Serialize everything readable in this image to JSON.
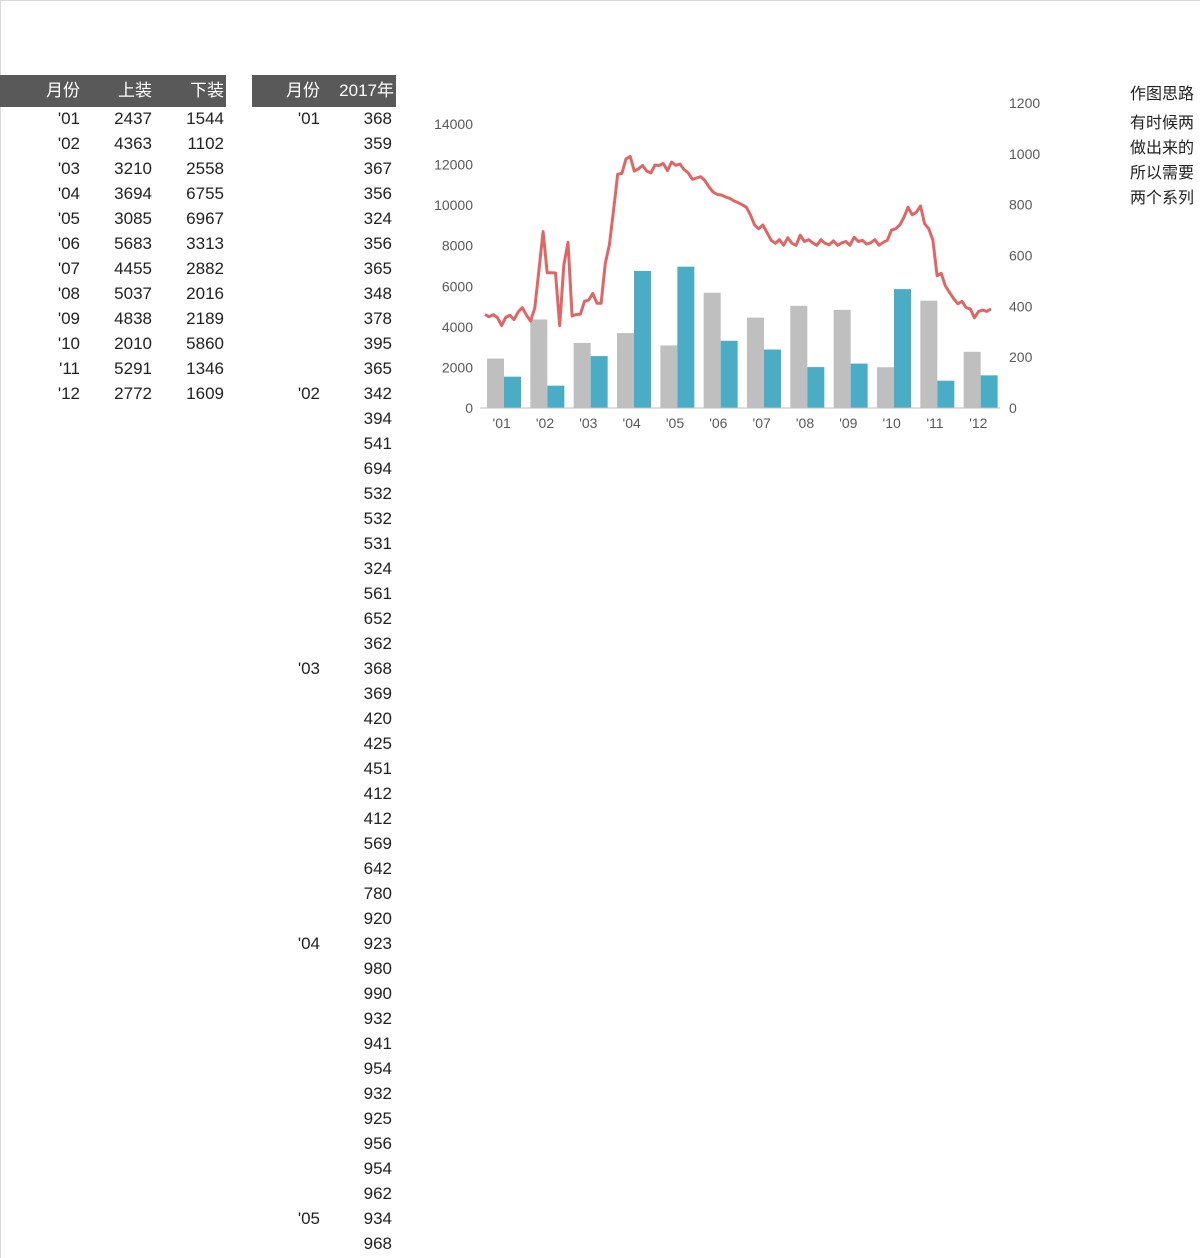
{
  "table1": {
    "headers": [
      "月份",
      "上装",
      "下装"
    ],
    "rows": [
      [
        "'01",
        "2437",
        "1544"
      ],
      [
        "'02",
        "4363",
        "1102"
      ],
      [
        "'03",
        "3210",
        "2558"
      ],
      [
        "'04",
        "3694",
        "6755"
      ],
      [
        "'05",
        "3085",
        "6967"
      ],
      [
        "'06",
        "5683",
        "3313"
      ],
      [
        "'07",
        "4455",
        "2882"
      ],
      [
        "'08",
        "5037",
        "2016"
      ],
      [
        "'09",
        "4838",
        "2189"
      ],
      [
        "'10",
        "2010",
        "5860"
      ],
      [
        "'11",
        "5291",
        "1346"
      ],
      [
        "'12",
        "2772",
        "1609"
      ]
    ]
  },
  "table2": {
    "headers": [
      "月份",
      "2017年"
    ],
    "rows": [
      [
        "'01",
        "368"
      ],
      [
        "",
        "359"
      ],
      [
        "",
        "367"
      ],
      [
        "",
        "356"
      ],
      [
        "",
        "324"
      ],
      [
        "",
        "356"
      ],
      [
        "",
        "365"
      ],
      [
        "",
        "348"
      ],
      [
        "",
        "378"
      ],
      [
        "",
        "395"
      ],
      [
        "",
        "365"
      ],
      [
        "'02",
        "342"
      ],
      [
        "",
        "394"
      ],
      [
        "",
        "541"
      ],
      [
        "",
        "694"
      ],
      [
        "",
        "532"
      ],
      [
        "",
        "532"
      ],
      [
        "",
        "531"
      ],
      [
        "",
        "324"
      ],
      [
        "",
        "561"
      ],
      [
        "",
        "652"
      ],
      [
        "",
        "362"
      ],
      [
        "'03",
        "368"
      ],
      [
        "",
        "369"
      ],
      [
        "",
        "420"
      ],
      [
        "",
        "425"
      ],
      [
        "",
        "451"
      ],
      [
        "",
        "412"
      ],
      [
        "",
        "412"
      ],
      [
        "",
        "569"
      ],
      [
        "",
        "642"
      ],
      [
        "",
        "780"
      ],
      [
        "",
        "920"
      ],
      [
        "'04",
        "923"
      ],
      [
        "",
        "980"
      ],
      [
        "",
        "990"
      ],
      [
        "",
        "932"
      ],
      [
        "",
        "941"
      ],
      [
        "",
        "954"
      ],
      [
        "",
        "932"
      ],
      [
        "",
        "925"
      ],
      [
        "",
        "956"
      ],
      [
        "",
        "954"
      ],
      [
        "",
        "962"
      ],
      [
        "'05",
        "934"
      ],
      [
        "",
        "968"
      ]
    ]
  },
  "notes": {
    "title": "作图思路",
    "lines": [
      "有时候两",
      "做出来的",
      "所以需要",
      "两个系列"
    ]
  },
  "chart_data": {
    "type": "bar",
    "categories": [
      "'01",
      "'02",
      "'03",
      "'04",
      "'05",
      "'06",
      "'07",
      "'08",
      "'09",
      "'10",
      "'11",
      "'12"
    ],
    "series": [
      {
        "values": [
          2437,
          4363,
          3210,
          3694,
          3085,
          5683,
          4455,
          5037,
          4838,
          2010,
          5291,
          2772
        ],
        "color": "#bfbfbf"
      },
      {
        "values": [
          1544,
          1102,
          2558,
          6755,
          6967,
          3313,
          2882,
          2016,
          2189,
          5860,
          1346,
          1609
        ],
        "color": "#4bacc6"
      }
    ],
    "line_series": {
      "type": "line",
      "axis": "secondary",
      "color": "#e06666",
      "values": [
        368,
        359,
        367,
        356,
        324,
        356,
        365,
        348,
        378,
        395,
        365,
        342,
        394,
        541,
        694,
        532,
        532,
        531,
        324,
        561,
        652,
        362,
        368,
        369,
        420,
        425,
        451,
        412,
        412,
        569,
        642,
        780,
        920,
        923,
        980,
        990,
        932,
        941,
        954,
        932,
        925,
        956,
        954,
        962,
        934,
        968,
        955,
        960,
        938,
        925,
        900,
        905,
        910,
        895,
        870,
        850,
        840,
        838,
        830,
        825,
        815,
        808,
        800,
        790,
        760,
        720,
        705,
        720,
        690,
        660,
        648,
        662,
        640,
        670,
        648,
        640,
        680,
        655,
        662,
        650,
        640,
        662,
        648,
        642,
        658,
        640,
        650,
        655,
        640,
        672,
        655,
        660,
        645,
        650,
        662,
        640,
        652,
        660,
        700,
        705,
        720,
        750,
        790,
        760,
        770,
        795,
        725,
        705,
        660,
        520,
        530,
        480,
        455,
        430,
        410,
        420,
        395,
        390,
        355,
        380,
        385,
        380,
        390
      ]
    },
    "y_left": {
      "min": 0,
      "max": 14000,
      "ticks": [
        0,
        2000,
        4000,
        6000,
        8000,
        10000,
        12000,
        14000
      ]
    },
    "y_right": {
      "min": 0,
      "max": 1200,
      "ticks": [
        0,
        200,
        400,
        600,
        800,
        1000,
        1200
      ]
    },
    "grid": false,
    "legend": "none"
  }
}
